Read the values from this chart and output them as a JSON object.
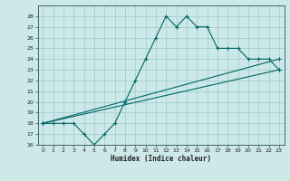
{
  "xlabel": "Humidex (Indice chaleur)",
  "xlim": [
    -0.5,
    23.5
  ],
  "ylim": [
    16,
    29
  ],
  "yticks": [
    16,
    17,
    18,
    19,
    20,
    21,
    22,
    23,
    24,
    25,
    26,
    27,
    28
  ],
  "xticks": [
    0,
    1,
    2,
    3,
    4,
    5,
    6,
    7,
    8,
    9,
    10,
    11,
    12,
    13,
    14,
    15,
    16,
    17,
    18,
    19,
    20,
    21,
    22,
    23
  ],
  "bg_color": "#cce8e8",
  "grid_color": "#99cccc",
  "line_color": "#006666",
  "line1_x": [
    0,
    1,
    2,
    3,
    4,
    5,
    6,
    7,
    8,
    9,
    10,
    11,
    12,
    13,
    14,
    15,
    16,
    17,
    18,
    19,
    20,
    21,
    22,
    23
  ],
  "line1_y": [
    18,
    18,
    18,
    18,
    17,
    16,
    17,
    18,
    20,
    22,
    24,
    26,
    28,
    27,
    28,
    27,
    27,
    25,
    25,
    25,
    24,
    24,
    24,
    23
  ],
  "line2_x": [
    0,
    23
  ],
  "line2_y": [
    18,
    23
  ],
  "line3_x": [
    0,
    23
  ],
  "line3_y": [
    18,
    24
  ],
  "figsize": [
    3.2,
    2.0
  ],
  "dpi": 100
}
